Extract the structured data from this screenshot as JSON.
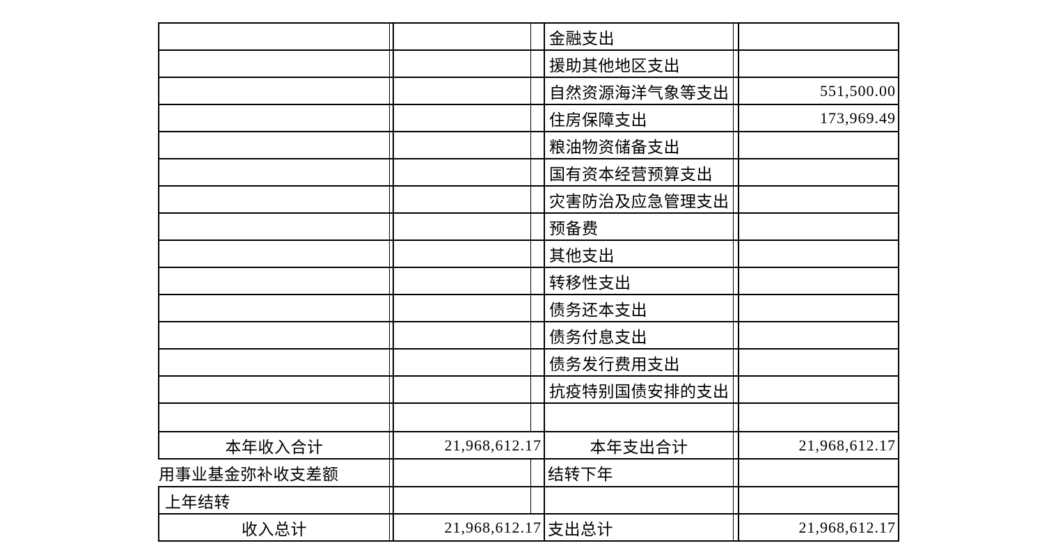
{
  "page": {
    "background_color": "#ffffff",
    "border_color": "#000000",
    "text_color": "#000000"
  },
  "table": {
    "description_rows_note": "income section (left pair) and expenditure section (right pair)",
    "rows": [
      {
        "type": "detail",
        "income_label": "",
        "income_amount": "",
        "expense_label": "金融支出",
        "expense_amount": ""
      },
      {
        "type": "detail",
        "income_label": "",
        "income_amount": "",
        "expense_label": "援助其他地区支出",
        "expense_amount": ""
      },
      {
        "type": "detail",
        "income_label": "",
        "income_amount": "",
        "expense_label": "自然资源海洋气象等支出",
        "expense_amount": "551,500.00"
      },
      {
        "type": "detail",
        "income_label": "",
        "income_amount": "",
        "expense_label": "住房保障支出",
        "expense_amount": "173,969.49"
      },
      {
        "type": "detail",
        "income_label": "",
        "income_amount": "",
        "expense_label": "粮油物资储备支出",
        "expense_amount": ""
      },
      {
        "type": "detail",
        "income_label": "",
        "income_amount": "",
        "expense_label": "国有资本经营预算支出",
        "expense_amount": ""
      },
      {
        "type": "detail",
        "income_label": "",
        "income_amount": "",
        "expense_label": "灾害防治及应急管理支出",
        "expense_amount": ""
      },
      {
        "type": "detail",
        "income_label": "",
        "income_amount": "",
        "expense_label": "预备费",
        "expense_amount": ""
      },
      {
        "type": "detail",
        "income_label": "",
        "income_amount": "",
        "expense_label": "其他支出",
        "expense_amount": ""
      },
      {
        "type": "detail",
        "income_label": "",
        "income_amount": "",
        "expense_label": "转移性支出",
        "expense_amount": ""
      },
      {
        "type": "detail",
        "income_label": "",
        "income_amount": "",
        "expense_label": "债务还本支出",
        "expense_amount": ""
      },
      {
        "type": "detail",
        "income_label": "",
        "income_amount": "",
        "expense_label": "债务付息支出",
        "expense_amount": ""
      },
      {
        "type": "detail",
        "income_label": "",
        "income_amount": "",
        "expense_label": "债务发行费用支出",
        "expense_amount": ""
      },
      {
        "type": "detail",
        "income_label": "",
        "income_amount": "",
        "expense_label": "抗疫特别国债安排的支出",
        "expense_amount": ""
      },
      {
        "type": "blank",
        "income_label": "",
        "income_amount": "",
        "expense_label": "",
        "expense_amount": ""
      },
      {
        "type": "total",
        "income_label": "本年收入合计",
        "income_amount": "21,968,612.17",
        "expense_label": "本年支出合计",
        "expense_amount": "21,968,612.17"
      },
      {
        "type": "carry",
        "income_label": "用事业基金弥补收支差额",
        "income_amount": "",
        "expense_label": "结转下年",
        "expense_amount": ""
      },
      {
        "type": "prev",
        "income_label": "上年结转",
        "income_amount": "",
        "expense_label": "",
        "expense_amount": ""
      },
      {
        "type": "grand",
        "income_label": "收入总计",
        "income_amount": "21,968,612.17",
        "expense_label": "支出总计",
        "expense_amount": "21,968,612.17"
      }
    ]
  }
}
